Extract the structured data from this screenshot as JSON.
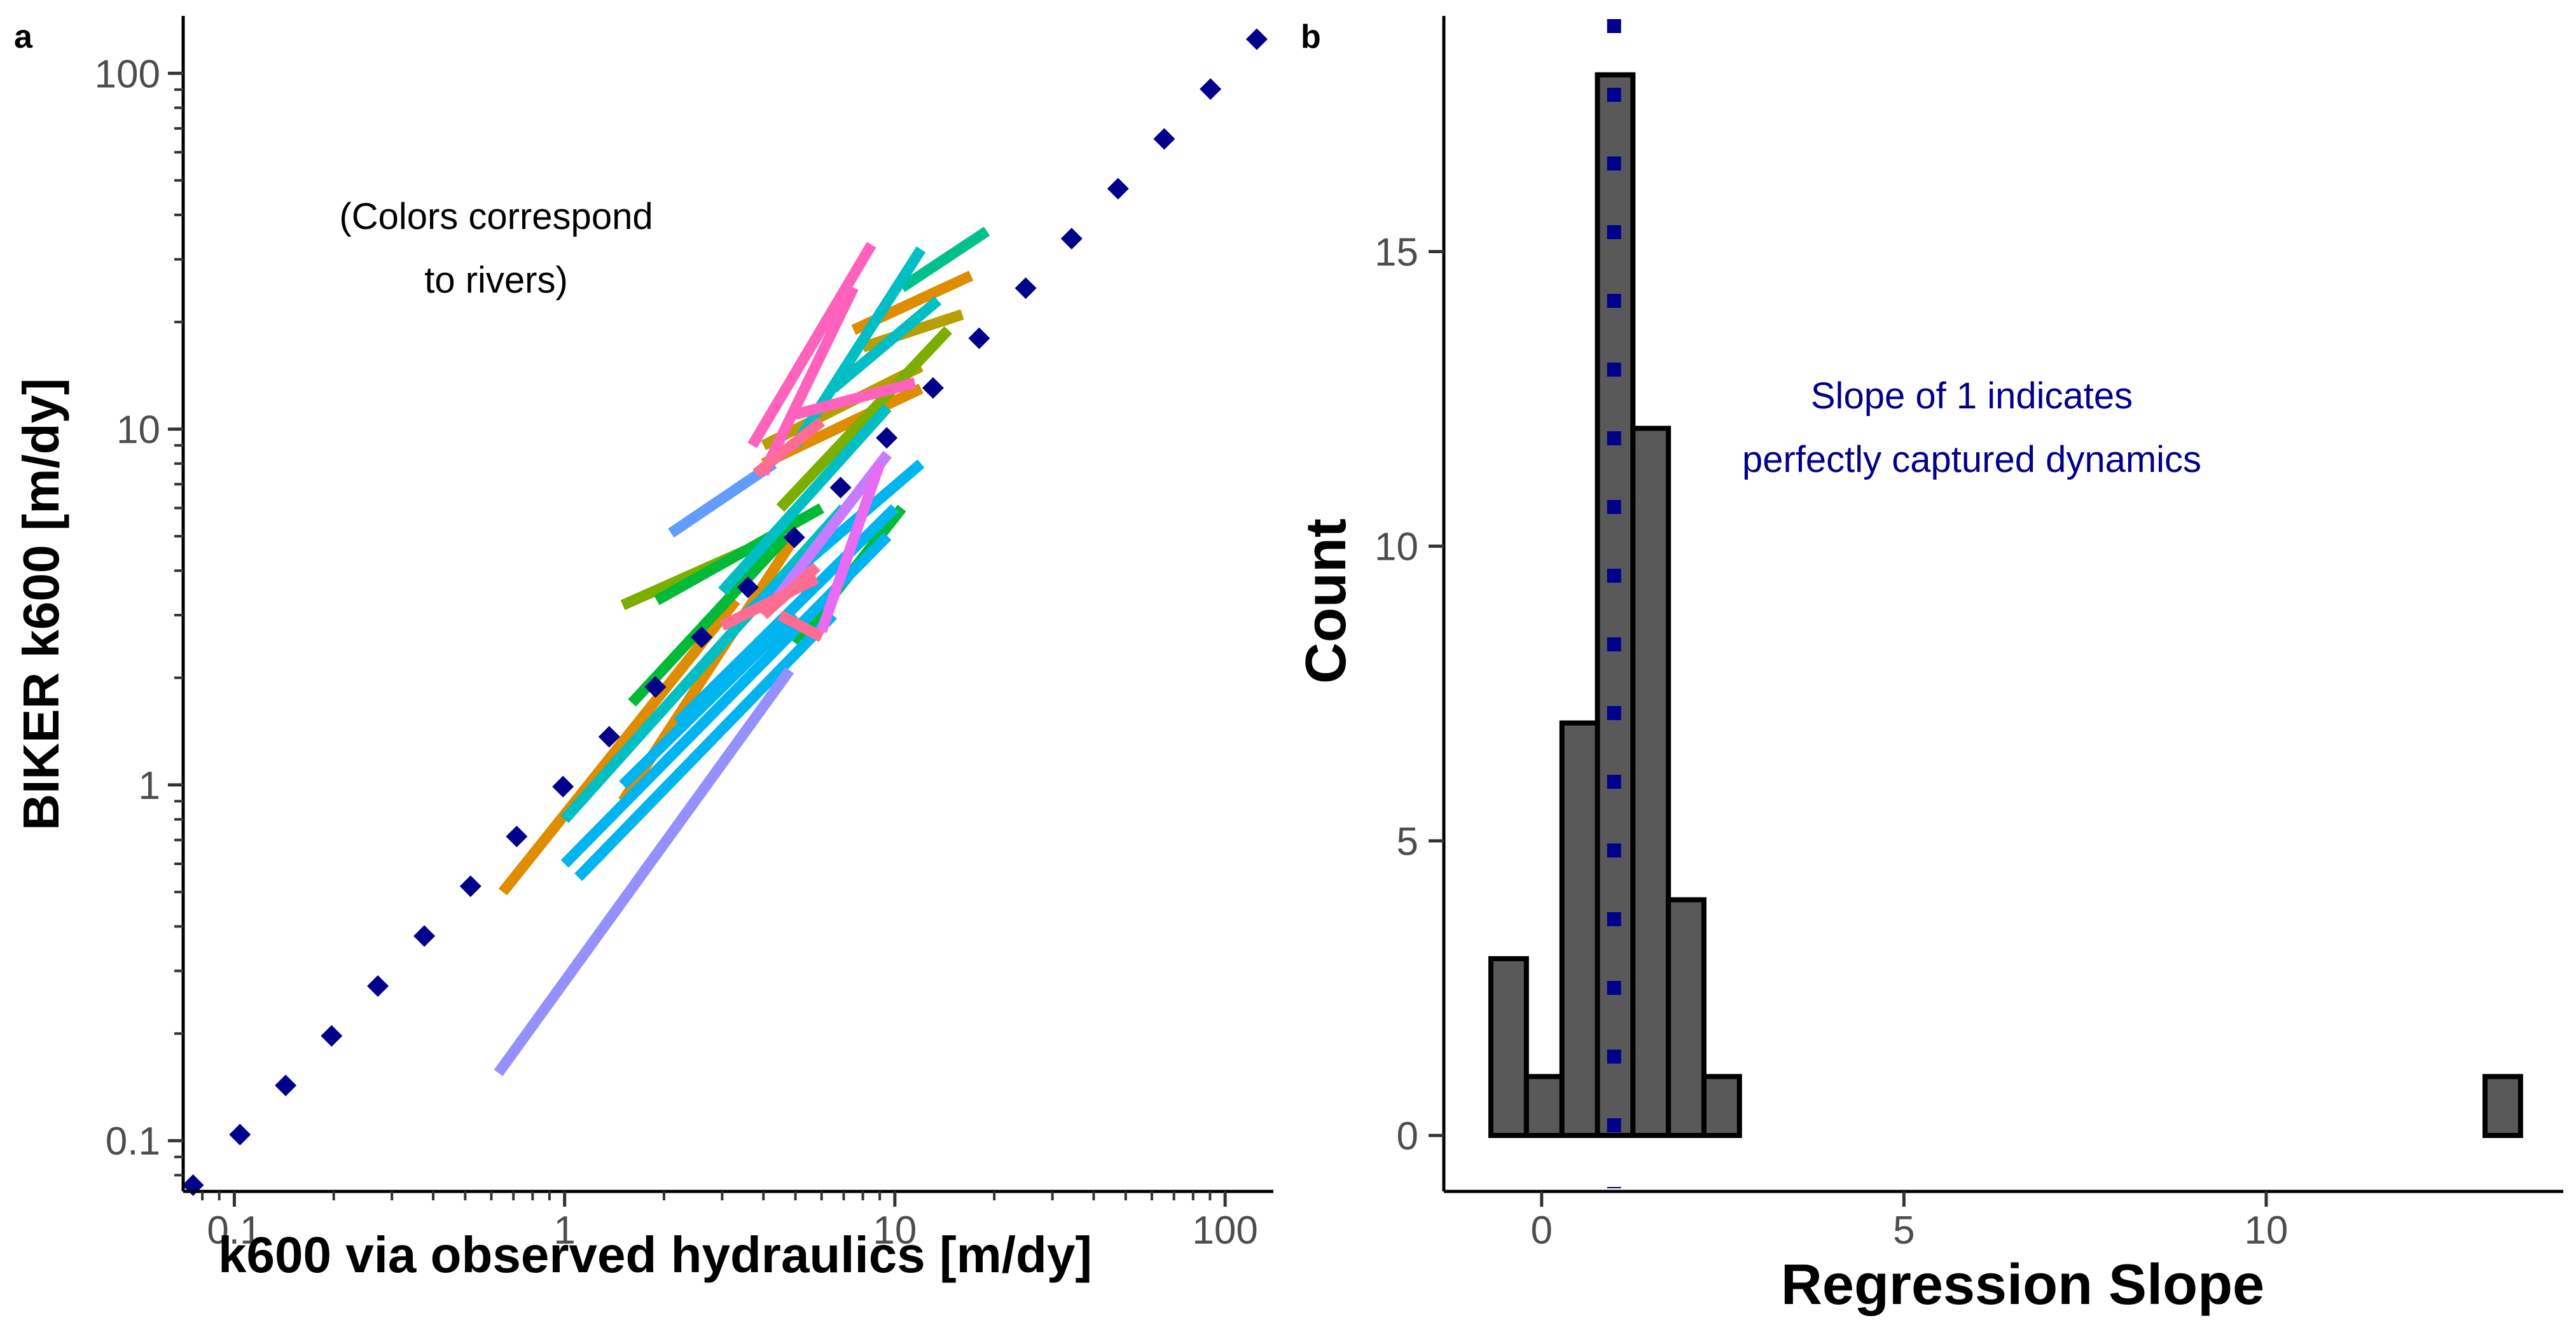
{
  "panels": {
    "a": {
      "label": "a"
    },
    "b": {
      "label": "b"
    }
  },
  "chart_data": [
    {
      "panel": "a",
      "type": "line",
      "xlabel": "k600 via observed hydraulics [m/dy]",
      "ylabel": "BIKER k600 [m/dy]",
      "x_scale": "log10",
      "y_scale": "log10",
      "xlim": [
        0.07,
        140
      ],
      "ylim": [
        0.072,
        145
      ],
      "x_ticks": [
        0.1,
        1,
        10,
        100
      ],
      "x_tick_labels": [
        "0.1",
        "1",
        "10",
        "100"
      ],
      "y_ticks": [
        0.1,
        1,
        10,
        100
      ],
      "y_tick_labels": [
        "0.1",
        "1",
        "10",
        "100"
      ],
      "minor_ticks": true,
      "grid": false,
      "annotation": "(Colors correspond\nto rivers)",
      "reference_line": {
        "style": "dotted diamonds",
        "color": "#00008B",
        "x": [
          0.075,
          0.104,
          0.143,
          0.197,
          0.272,
          0.376,
          0.519,
          0.716,
          0.989,
          1.365,
          1.884,
          2.6,
          3.59,
          4.96,
          6.85,
          9.45,
          13.05,
          18.0,
          24.9,
          34.3,
          47.4,
          65.4,
          90.3,
          124.7
        ],
        "y": [
          0.075,
          0.104,
          0.143,
          0.197,
          0.272,
          0.376,
          0.519,
          0.716,
          0.989,
          1.365,
          1.884,
          2.6,
          3.59,
          4.96,
          6.85,
          9.45,
          13.05,
          18.0,
          24.9,
          34.3,
          47.4,
          65.4,
          90.3,
          124.7
        ]
      },
      "series": [
        {
          "color": "#DE8C00",
          "x": [
            0.65,
            3.3
          ],
          "y": [
            0.5,
            3.3
          ]
        },
        {
          "color": "#DE8C00",
          "x": [
            1.5,
            5.0
          ],
          "y": [
            0.9,
            5.0
          ]
        },
        {
          "color": "#DE8C00",
          "x": [
            7.5,
            17.0
          ],
          "y": [
            19.0,
            27.0
          ]
        },
        {
          "color": "#DE8C00",
          "x": [
            4.0,
            12.0
          ],
          "y": [
            8.0,
            13.0
          ]
        },
        {
          "color": "#B79F00",
          "x": [
            4.0,
            12.0
          ],
          "y": [
            9.0,
            15.0
          ]
        },
        {
          "color": "#B79F00",
          "x": [
            8.0,
            16.0
          ],
          "y": [
            17.0,
            21.0
          ]
        },
        {
          "color": "#7CAE00",
          "x": [
            4.5,
            14.5
          ],
          "y": [
            6.0,
            19.0
          ]
        },
        {
          "color": "#7CAE00",
          "x": [
            1.5,
            4.0
          ],
          "y": [
            3.2,
            4.8
          ]
        },
        {
          "color": "#00BA38",
          "x": [
            1.6,
            4.7
          ],
          "y": [
            1.7,
            5.0
          ]
        },
        {
          "color": "#00BA38",
          "x": [
            1.9,
            6.0
          ],
          "y": [
            3.3,
            6.0
          ]
        },
        {
          "color": "#00BA38",
          "x": [
            5.0,
            10.5
          ],
          "y": [
            2.5,
            6.0
          ]
        },
        {
          "color": "#00C08B",
          "x": [
            10.5,
            19.0
          ],
          "y": [
            25.0,
            36.0
          ]
        },
        {
          "color": "#00BFC4",
          "x": [
            1.0,
            7.0
          ],
          "y": [
            0.8,
            6.0
          ]
        },
        {
          "color": "#00BFC4",
          "x": [
            5.0,
            12.0
          ],
          "y": [
            9.0,
            32.0
          ]
        },
        {
          "color": "#00BFC4",
          "x": [
            3.0,
            9.5
          ],
          "y": [
            3.5,
            11.5
          ]
        },
        {
          "color": "#00BFC4",
          "x": [
            6.5,
            13.5
          ],
          "y": [
            13.0,
            23.0
          ]
        },
        {
          "color": "#00B4F0",
          "x": [
            1.0,
            9.5
          ],
          "y": [
            0.6,
            5.0
          ]
        },
        {
          "color": "#00B4F0",
          "x": [
            1.1,
            6.5
          ],
          "y": [
            0.55,
            3.0
          ]
        },
        {
          "color": "#00B4F0",
          "x": [
            2.2,
            10.0
          ],
          "y": [
            1.5,
            6.0
          ]
        },
        {
          "color": "#00B4F0",
          "x": [
            3.5,
            12.0
          ],
          "y": [
            3.0,
            8.0
          ]
        },
        {
          "color": "#00B4F0",
          "x": [
            1.5,
            5.0
          ],
          "y": [
            1.0,
            3.0
          ]
        },
        {
          "color": "#619CFF",
          "x": [
            2.1,
            4.3
          ],
          "y": [
            5.1,
            8.0
          ]
        },
        {
          "color": "#9590FF",
          "x": [
            0.63,
            4.8
          ],
          "y": [
            0.155,
            2.1
          ]
        },
        {
          "color": "#C77CFF",
          "x": [
            4.0,
            9.5
          ],
          "y": [
            3.0,
            8.5
          ]
        },
        {
          "color": "#E76BF3",
          "x": [
            6.0,
            9.0
          ],
          "y": [
            2.7,
            8.0
          ]
        },
        {
          "color": "#FF62BC",
          "x": [
            3.7,
            8.5
          ],
          "y": [
            9.0,
            33.0
          ]
        },
        {
          "color": "#FF62BC",
          "x": [
            4.0,
            7.5
          ],
          "y": [
            7.5,
            25.0
          ]
        },
        {
          "color": "#FF62BC",
          "x": [
            5.0,
            11.5
          ],
          "y": [
            11.0,
            13.5
          ]
        },
        {
          "color": "#FF6C91",
          "x": [
            3.8,
            6.0
          ],
          "y": [
            7.5,
            10.5
          ]
        },
        {
          "color": "#FF6C91",
          "x": [
            4.0,
            5.8
          ],
          "y": [
            3.0,
            4.1
          ]
        },
        {
          "color": "#FF6C91",
          "x": [
            4.5,
            6.0
          ],
          "y": [
            3.0,
            2.6
          ]
        },
        {
          "color": "#FF6C91",
          "x": [
            3.0,
            5.8
          ],
          "y": [
            2.8,
            3.8
          ]
        }
      ]
    },
    {
      "panel": "b",
      "type": "bar",
      "xlabel": "Regression Slope",
      "ylabel": "Count",
      "xlim": [
        -1.35,
        14.1
      ],
      "ylim": [
        -0.95,
        19.0
      ],
      "x_ticks": [
        0,
        5,
        10
      ],
      "x_tick_labels": [
        "0",
        "5",
        "10"
      ],
      "y_ticks": [
        0,
        5,
        10,
        15
      ],
      "y_tick_labels": [
        "0",
        "5",
        "10",
        "15"
      ],
      "grid": false,
      "bin_width": 0.49,
      "bin_start": -0.7,
      "counts": [
        3,
        1,
        7,
        18,
        12,
        4,
        1,
        0,
        0,
        0,
        0,
        0,
        0,
        0,
        0,
        0,
        0,
        0,
        0,
        0,
        0,
        0,
        0,
        0,
        0,
        0,
        0,
        0,
        1
      ],
      "bar_color": "#595959",
      "reference_line": {
        "x": 1,
        "color": "#00008B",
        "style": "dotted"
      },
      "annotation": "Slope of 1 indicates\nperfectly captured dynamics",
      "annotation_color": "#00008B"
    }
  ]
}
